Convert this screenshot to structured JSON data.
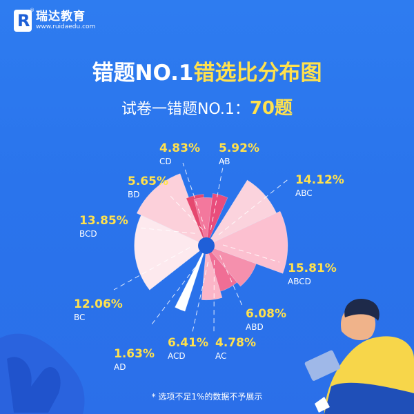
{
  "brand": {
    "name": "瑞达教育",
    "url": "www.ruidaedu.com",
    "mark": "R",
    "registered": "®"
  },
  "title": {
    "part1": "错题NO.1",
    "part2": "错选比分布图"
  },
  "subtitle": {
    "label": "试卷一错题NO.1：",
    "value": "70题"
  },
  "footnote": "* 选项不足1%的数据不予展示",
  "colors": {
    "background": "#2b75ec",
    "highlight": "#ffe14d",
    "hole": "#1f5fd8"
  },
  "chart_data": {
    "type": "pie",
    "variant": "nightingale-rose",
    "title": "错选比分布图",
    "unit": "%",
    "slices": [
      {
        "label": "AB",
        "value": 5.92,
        "color": "#e94d7c"
      },
      {
        "label": "ABC",
        "value": 14.12,
        "color": "#fbd3dd"
      },
      {
        "label": "ABCD",
        "value": 15.81,
        "color": "#fcc0d0"
      },
      {
        "label": "ABD",
        "value": 6.08,
        "color": "#f590ad"
      },
      {
        "label": "AC",
        "value": 4.78,
        "color": "#f06e95"
      },
      {
        "label": "ACD",
        "value": 6.41,
        "color": "#fbb5c7"
      },
      {
        "label": "AD",
        "value": 1.63,
        "color": "#ffffff"
      },
      {
        "label": "BC",
        "value": 12.06,
        "color": "#fde9ee"
      },
      {
        "label": "BCD",
        "value": 13.85,
        "color": "#fcd0da"
      },
      {
        "label": "BD",
        "value": 5.65,
        "color": "#e5486f"
      },
      {
        "label": "CD",
        "value": 4.83,
        "color": "#f3789d"
      }
    ]
  }
}
